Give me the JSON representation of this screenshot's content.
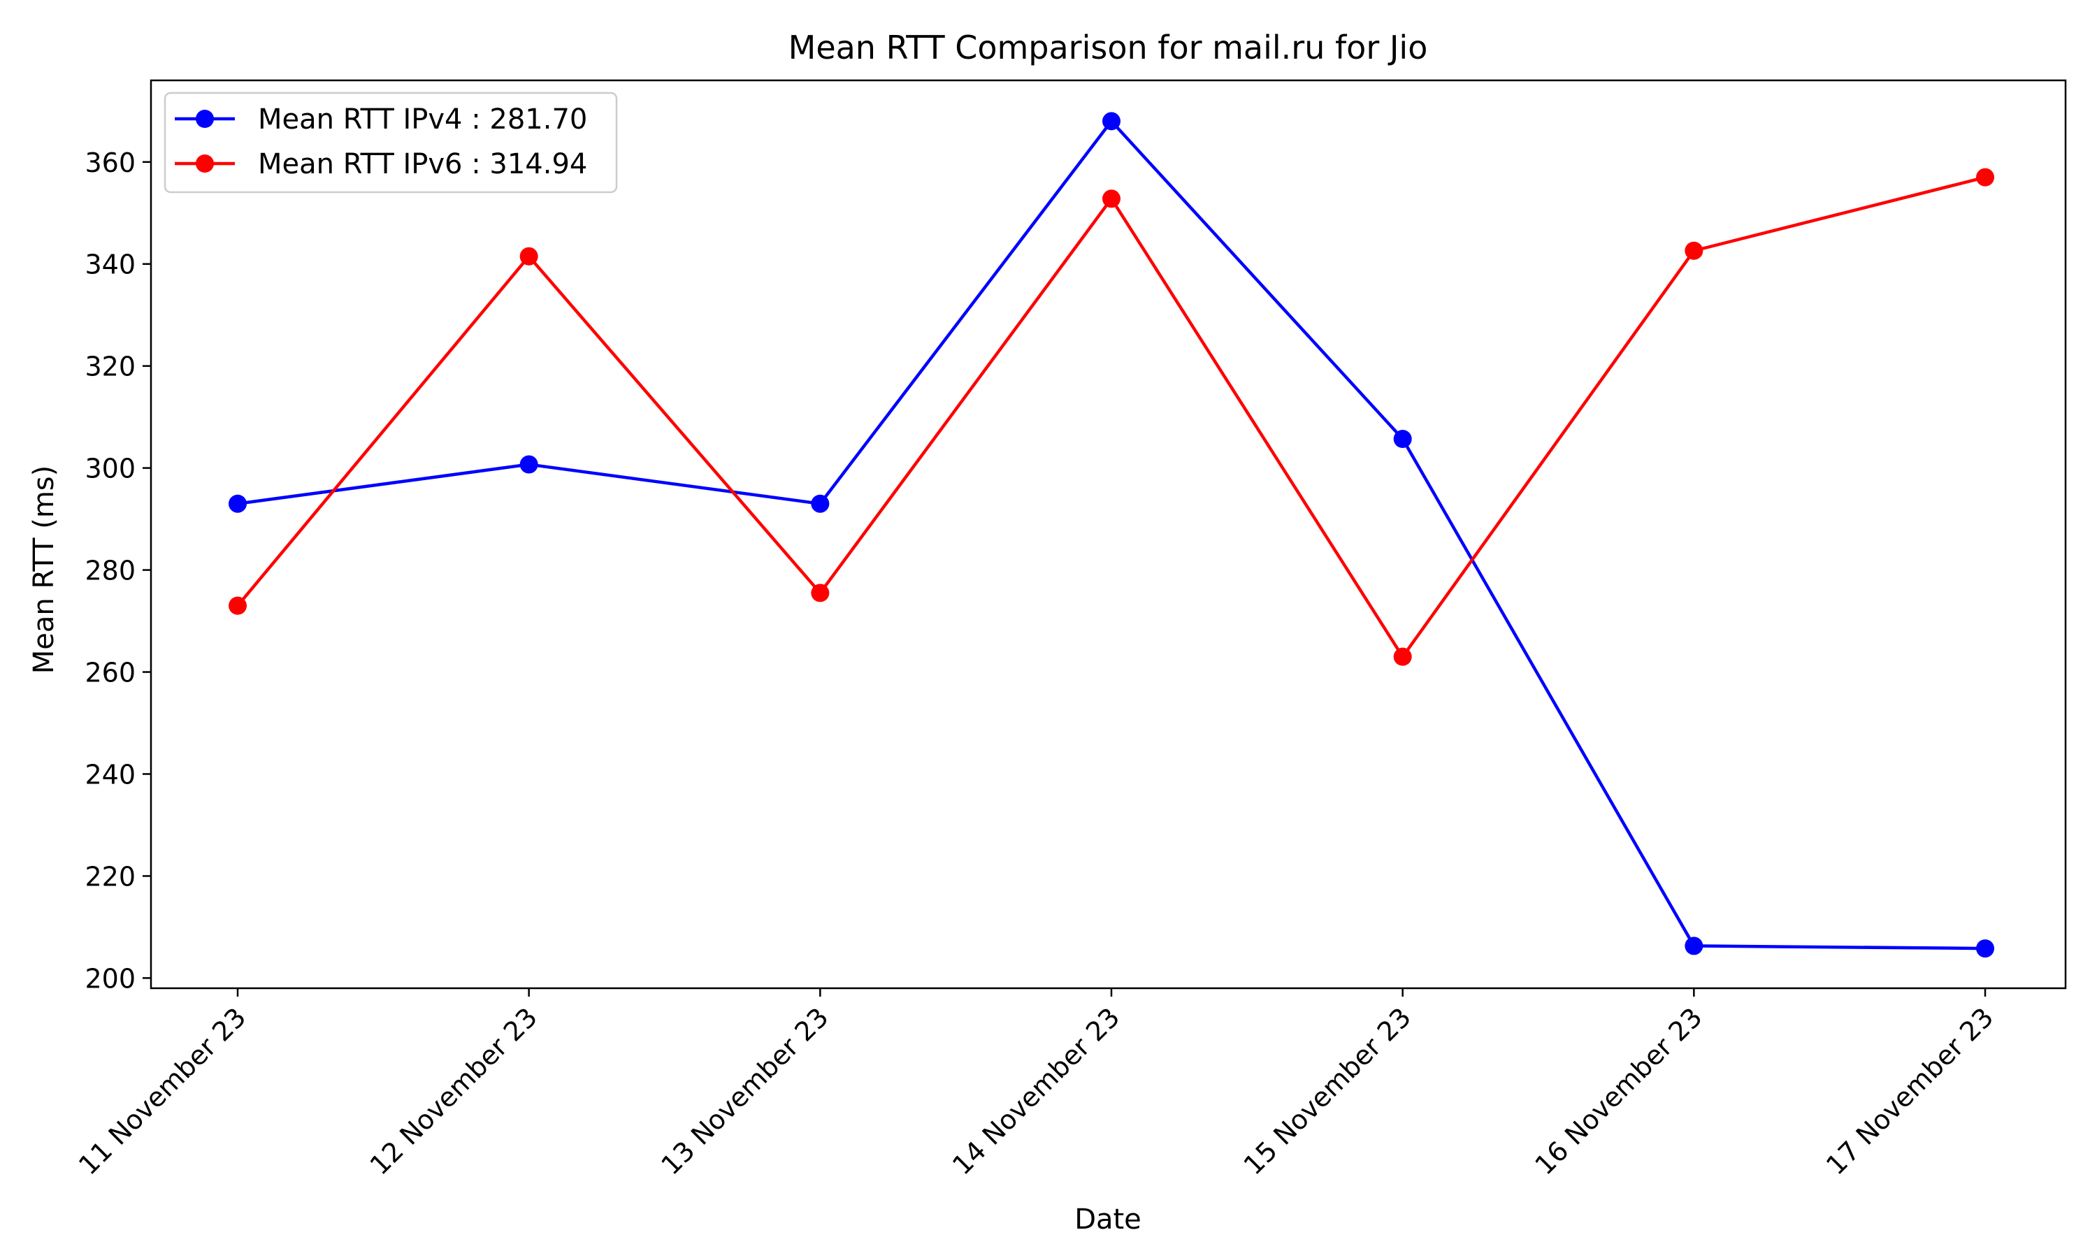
{
  "chart_data": {
    "type": "line",
    "title": "Mean RTT Comparison for mail.ru for Jio",
    "xlabel": "Date",
    "ylabel": "Mean RTT (ms)",
    "categories": [
      "11 November 23",
      "12 November 23",
      "13 November 23",
      "14 November 23",
      "15 November 23",
      "16 November 23",
      "17 November 23"
    ],
    "ylim": [
      198,
      376
    ],
    "yticks": [
      200,
      220,
      240,
      260,
      280,
      300,
      320,
      340,
      360
    ],
    "grid": false,
    "legend_position": "top-left",
    "series": [
      {
        "name": "Mean RTT IPv4 : 281.70",
        "color": "#0000ff",
        "values": [
          293,
          300.7,
          293,
          368,
          305.7,
          206.3,
          205.8
        ]
      },
      {
        "name": "Mean RTT IPv6 : 314.94",
        "color": "#ff0000",
        "values": [
          273,
          341.5,
          275.5,
          352.8,
          263,
          342.6,
          357
        ]
      }
    ]
  }
}
